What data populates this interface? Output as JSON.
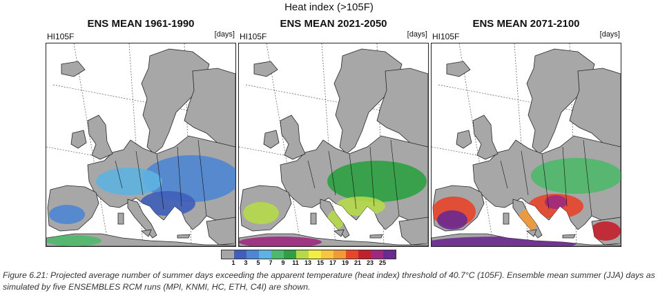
{
  "figure_title": "Heat index (>105F)",
  "panels": [
    {
      "title": "ENS MEAN 1961-1990",
      "variable": "HI105F",
      "unit": "[days]",
      "intensity": 1
    },
    {
      "title": "ENS MEAN 2021-2050",
      "variable": "HI105F",
      "unit": "[days]",
      "intensity": 2
    },
    {
      "title": "ENS MEAN 2071-2100",
      "variable": "HI105F",
      "unit": "[days]",
      "intensity": 3
    }
  ],
  "legend": {
    "colors": [
      "#a6a6a6",
      "#3f5fb8",
      "#4f86d4",
      "#5fb2e0",
      "#4fb86a",
      "#2ea042",
      "#b6d94a",
      "#f5ee40",
      "#f6c640",
      "#f29a36",
      "#e8452b",
      "#c3202c",
      "#9e2a80",
      "#6a2a90"
    ],
    "ticks": [
      "1",
      "3",
      "5",
      "7",
      "9",
      "11",
      "13",
      "15",
      "17",
      "19",
      "21",
      "23",
      "25"
    ]
  },
  "caption": "Figure 6.21: Projected average number of summer days exceeding the apparent temperature (heat index) threshold of 40.7°C (105F). Ensemble mean summer (JJA) days as simulated by five ENSEMBLES RCM runs (MPI, KNMI, HC, ETH, C4I) are shown."
}
